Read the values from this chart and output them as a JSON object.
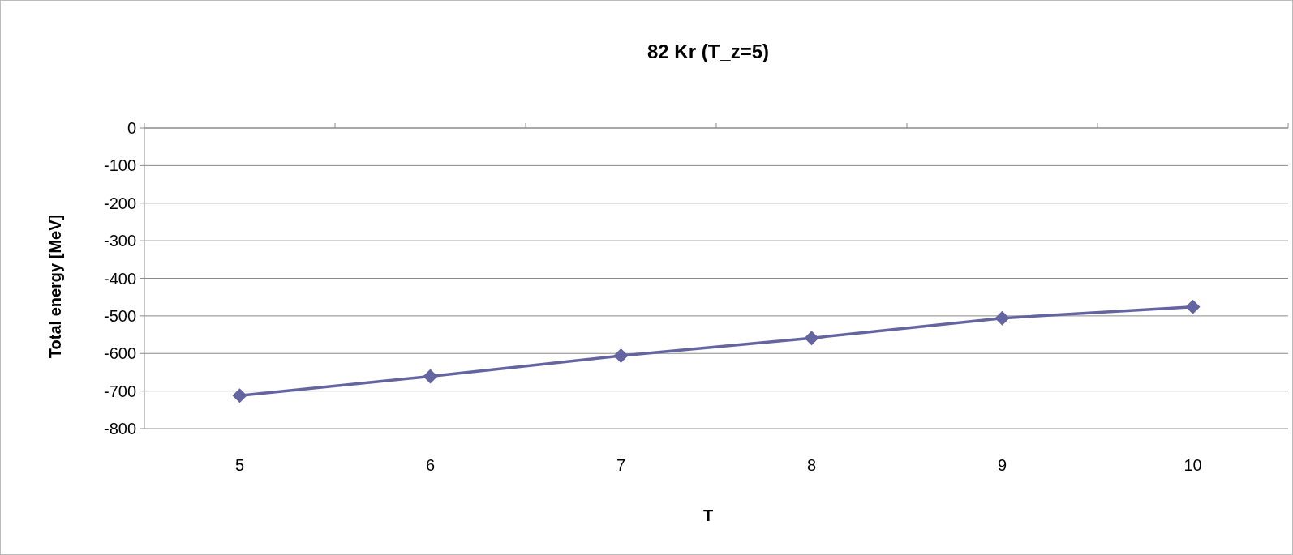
{
  "chart_data": {
    "type": "line",
    "title": "82 Kr (T_z=5)",
    "xlabel": "T",
    "ylabel": "Total energy [MeV]",
    "categories": [
      "5",
      "6",
      "7",
      "8",
      "9",
      "10"
    ],
    "series": [
      {
        "color": "#6464a0",
        "values": [
          -712,
          -661,
          -606,
          -559,
          -506,
          -476
        ]
      }
    ],
    "ylim": [
      -800,
      0
    ],
    "yticks": [
      -800,
      -700,
      -600,
      -500,
      -400,
      -300,
      -200,
      -100,
      0
    ],
    "grid": "y",
    "marker": "diamond",
    "line_style": "solid"
  }
}
